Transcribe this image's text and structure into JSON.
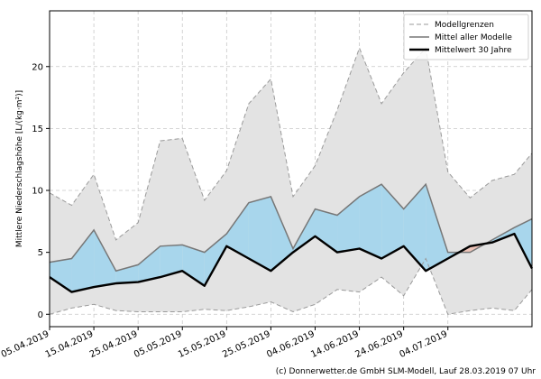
{
  "chart_data": {
    "type": "area",
    "ylabel": "Mittlere Niederschlagshöhe [L/(kg·m²)]",
    "ylim": [
      -1,
      24.5
    ],
    "xlim": [
      "2019-04-05",
      "2019-07-23"
    ],
    "yticks": [
      0,
      5,
      10,
      15,
      20
    ],
    "xticks": [
      "05.04.2019",
      "15.04.2019",
      "25.04.2019",
      "05.05.2019",
      "15.05.2019",
      "25.05.2019",
      "04.06.2019",
      "14.06.2019",
      "24.06.2019",
      "04.07.2019"
    ],
    "grid": true,
    "legend_position": "top-right",
    "legend": [
      "Modellgrenzen",
      "Mittel aller Modelle",
      "Mittelwert 30 Jahre"
    ],
    "colors": {
      "envelope_fill": "#e3e3e3",
      "envelope_line": "#9a9a9a",
      "mean_line": "#777777",
      "climate_line": "#000000",
      "above_fill": "#a8d6ec",
      "below_fill": "#eec3b8"
    },
    "x": [
      "2019-04-05",
      "2019-04-10",
      "2019-04-15",
      "2019-04-20",
      "2019-04-25",
      "2019-04-30",
      "2019-05-05",
      "2019-05-10",
      "2019-05-15",
      "2019-05-20",
      "2019-05-25",
      "2019-05-30",
      "2019-06-04",
      "2019-06-09",
      "2019-06-14",
      "2019-06-19",
      "2019-06-24",
      "2019-06-29",
      "2019-07-04",
      "2019-07-09",
      "2019-07-14",
      "2019-07-19",
      "2019-07-23"
    ],
    "series": [
      {
        "name": "Modellgrenzen",
        "role": "upper",
        "values": [
          9.8,
          8.8,
          11.3,
          6.0,
          7.4,
          14.0,
          14.2,
          9.2,
          11.6,
          17.0,
          19.0,
          9.5,
          12.0,
          16.5,
          21.5,
          17.0,
          19.5,
          21.5,
          11.5,
          9.4,
          10.8,
          11.3,
          13.0
        ]
      },
      {
        "name": "Modellgrenzen",
        "role": "lower",
        "values": [
          0.0,
          0.5,
          0.8,
          0.3,
          0.2,
          0.2,
          0.2,
          0.4,
          0.3,
          0.6,
          1.0,
          0.2,
          0.8,
          2.0,
          1.8,
          3.0,
          1.5,
          4.5,
          0.0,
          0.3,
          0.5,
          0.3,
          2.0
        ]
      },
      {
        "name": "Mittel aller Modelle",
        "values": [
          4.2,
          4.5,
          6.8,
          3.5,
          4.0,
          5.5,
          5.6,
          5.0,
          6.5,
          9.0,
          9.5,
          5.3,
          8.5,
          8.0,
          9.5,
          10.5,
          8.5,
          10.5,
          5.0,
          5.0,
          6.0,
          7.0,
          7.7
        ]
      },
      {
        "name": "Mittelwert 30 Jahre",
        "values": [
          3.0,
          1.8,
          2.2,
          2.5,
          2.6,
          3.0,
          3.5,
          2.3,
          5.5,
          4.5,
          3.5,
          5.0,
          6.3,
          5.0,
          5.3,
          4.5,
          5.5,
          3.5,
          4.5,
          5.5,
          5.8,
          6.5,
          3.7
        ]
      }
    ]
  },
  "credit": "(c) Donnerwetter.de GmbH SLM-Modell, Lauf 28.03.2019 07 Uhr"
}
